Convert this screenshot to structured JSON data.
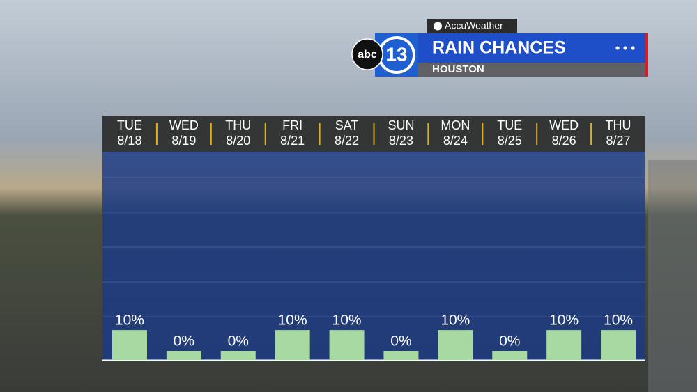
{
  "chart_data": {
    "type": "bar",
    "title": "RAIN CHANCES",
    "subtitle": "HOUSTON",
    "source": "AccuWeather",
    "network": "abc",
    "channel": "13",
    "weekdays": [
      "TUE",
      "WED",
      "THU",
      "FRI",
      "SAT",
      "SUN",
      "MON",
      "TUE",
      "WED",
      "THU"
    ],
    "categories": [
      "8/18",
      "8/19",
      "8/20",
      "8/21",
      "8/22",
      "8/23",
      "8/24",
      "8/25",
      "8/26",
      "8/27"
    ],
    "values": [
      10,
      0,
      0,
      10,
      10,
      0,
      10,
      0,
      10,
      10
    ],
    "value_labels": [
      "10%",
      "0%",
      "0%",
      "10%",
      "10%",
      "0%",
      "10%",
      "0%",
      "10%",
      "10%"
    ],
    "color": "#a9d9a2",
    "ylim": [
      0,
      100
    ]
  }
}
